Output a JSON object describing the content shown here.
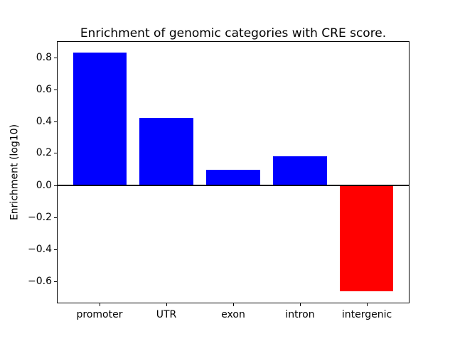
{
  "chart_data": {
    "type": "bar",
    "title": "Enrichment of genomic categories with CRE score.",
    "xlabel": "",
    "ylabel": "Enrichment (log10)",
    "categories": [
      "promoter",
      "UTR",
      "exon",
      "intron",
      "intergenic"
    ],
    "values": [
      0.828,
      0.418,
      0.094,
      0.181,
      -0.665
    ],
    "bar_colors": [
      "#0000ff",
      "#0000ff",
      "#0000ff",
      "#0000ff",
      "#ff0000"
    ],
    "positive_color": "#0000ff",
    "negative_color": "#ff0000",
    "ylim": [
      -0.74,
      0.9
    ],
    "xlim": [
      -0.64,
      4.64
    ],
    "bar_width": 0.8,
    "yticks": [
      0.8,
      0.6,
      0.4,
      0.2,
      0.0,
      -0.2,
      -0.4,
      -0.6
    ],
    "ytick_labels": [
      "0.8",
      "0.6",
      "0.4",
      "0.2",
      "0.0",
      "−0.2",
      "−0.4",
      "−0.6"
    ],
    "zero_line": true,
    "grid": false,
    "legend": null
  }
}
